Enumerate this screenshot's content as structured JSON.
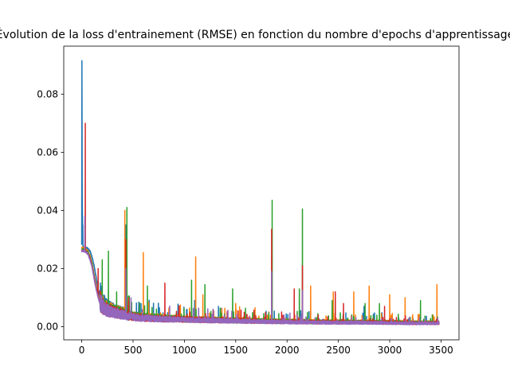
{
  "chart_data": {
    "type": "line",
    "title": "Évolution de la loss d'entrainement (RMSE) en fonction du nombre d'epochs d'apprentissage",
    "xlabel": "",
    "ylabel": "",
    "xlim": [
      -175,
      3675
    ],
    "ylim": [
      -0.0045,
      0.0965
    ],
    "x_ticks": [
      0,
      500,
      1000,
      1500,
      2000,
      2500,
      3000,
      3500
    ],
    "x_tick_labels": [
      "0",
      "500",
      "1000",
      "1500",
      "2000",
      "2500",
      "3000",
      "3500"
    ],
    "y_ticks": [
      0.0,
      0.02,
      0.04,
      0.06,
      0.08
    ],
    "y_tick_labels": [
      "0.00",
      "0.02",
      "0.04",
      "0.06",
      "0.08"
    ],
    "grid": false,
    "legend": "none",
    "series": [
      {
        "color": "#1f77b4",
        "x": [
          0,
          2,
          5,
          10,
          20,
          40,
          60,
          80,
          100,
          120,
          140,
          160,
          180,
          200,
          230,
          260,
          300,
          340,
          380,
          420,
          440,
          460,
          500,
          600,
          800,
          1000,
          1200,
          1500,
          1800,
          2000,
          2200,
          2500,
          2800,
          3000,
          3200,
          3480
        ],
        "y": [
          0.028,
          0.0915,
          0.045,
          0.028,
          0.027,
          0.027,
          0.0268,
          0.026,
          0.024,
          0.021,
          0.017,
          0.013,
          0.01,
          0.008,
          0.0065,
          0.0058,
          0.0052,
          0.0048,
          0.0045,
          0.0042,
          0.0039,
          0.0036,
          0.0033,
          0.003,
          0.0026,
          0.0023,
          0.0021,
          0.0019,
          0.0017,
          0.0016,
          0.0016,
          0.0015,
          0.0014,
          0.0014,
          0.0013,
          0.0012
        ],
        "spikes": [
          [
            2,
            0.0915
          ],
          [
            10,
            0.035
          ],
          [
            430,
            0.035
          ],
          [
            1100,
            0.009
          ],
          [
            1850,
            0.018
          ],
          [
            2150,
            0.012
          ],
          [
            2750,
            0.007
          ]
        ]
      },
      {
        "color": "#ff7f0e",
        "x": [
          0,
          20,
          40,
          60,
          80,
          100,
          120,
          140,
          160,
          180,
          200,
          230,
          260,
          300,
          340,
          380,
          420,
          440,
          460,
          500,
          600,
          800,
          1000,
          1200,
          1500,
          1800,
          2000,
          2200,
          2500,
          2800,
          3000,
          3200,
          3480
        ],
        "y": [
          0.027,
          0.027,
          0.0265,
          0.026,
          0.0245,
          0.022,
          0.018,
          0.0145,
          0.011,
          0.0085,
          0.007,
          0.006,
          0.0055,
          0.005,
          0.0047,
          0.0044,
          0.0041,
          0.0038,
          0.0035,
          0.0033,
          0.003,
          0.0027,
          0.0024,
          0.0022,
          0.002,
          0.0018,
          0.0017,
          0.0016,
          0.0015,
          0.0015,
          0.0014,
          0.0013,
          0.0013
        ],
        "spikes": [
          [
            420,
            0.04
          ],
          [
            600,
            0.0255
          ],
          [
            1110,
            0.024
          ],
          [
            1180,
            0.011
          ],
          [
            1500,
            0.008
          ],
          [
            2230,
            0.014
          ],
          [
            2450,
            0.012
          ],
          [
            2650,
            0.012
          ],
          [
            2800,
            0.014
          ],
          [
            3000,
            0.011
          ],
          [
            3150,
            0.01
          ],
          [
            3460,
            0.0145
          ]
        ]
      },
      {
        "color": "#2ca02c",
        "x": [
          0,
          20,
          40,
          60,
          80,
          100,
          120,
          140,
          160,
          180,
          200,
          230,
          260,
          300,
          340,
          380,
          420,
          440,
          460,
          500,
          600,
          800,
          1000,
          1200,
          1500,
          1800,
          2000,
          2200,
          2500,
          2800,
          3000,
          3200,
          3480
        ],
        "y": [
          0.0265,
          0.0265,
          0.026,
          0.0255,
          0.024,
          0.0215,
          0.0175,
          0.014,
          0.0105,
          0.008,
          0.0066,
          0.0057,
          0.0052,
          0.0048,
          0.0045,
          0.0042,
          0.0039,
          0.0036,
          0.0034,
          0.0032,
          0.0029,
          0.0026,
          0.0023,
          0.0021,
          0.0019,
          0.0017,
          0.0016,
          0.0015,
          0.0014,
          0.0014,
          0.0013,
          0.0012,
          0.0012
        ],
        "spikes": [
          [
            200,
            0.023
          ],
          [
            260,
            0.026
          ],
          [
            340,
            0.012
          ],
          [
            440,
            0.041
          ],
          [
            640,
            0.014
          ],
          [
            1070,
            0.016
          ],
          [
            1200,
            0.0145
          ],
          [
            1470,
            0.013
          ],
          [
            1855,
            0.0435
          ],
          [
            2150,
            0.0405
          ],
          [
            2120,
            0.013
          ],
          [
            2440,
            0.009
          ],
          [
            2760,
            0.008
          ],
          [
            2900,
            0.008
          ],
          [
            3300,
            0.009
          ]
        ]
      },
      {
        "color": "#d62728",
        "x": [
          0,
          20,
          40,
          60,
          80,
          100,
          120,
          140,
          160,
          180,
          200,
          230,
          260,
          300,
          340,
          380,
          420,
          440,
          460,
          500,
          600,
          800,
          1000,
          1200,
          1500,
          1800,
          2000,
          2200,
          2500,
          2800,
          3000,
          3200,
          3480
        ],
        "y": [
          0.026,
          0.026,
          0.0258,
          0.025,
          0.0235,
          0.021,
          0.017,
          0.0135,
          0.0102,
          0.0078,
          0.0064,
          0.0055,
          0.005,
          0.0046,
          0.0043,
          0.004,
          0.0037,
          0.0034,
          0.0032,
          0.003,
          0.0027,
          0.0024,
          0.0022,
          0.002,
          0.0018,
          0.0016,
          0.0015,
          0.0014,
          0.0013,
          0.0013,
          0.0012,
          0.0011,
          0.0011
        ],
        "spikes": [
          [
            35,
            0.07
          ],
          [
            160,
            0.02
          ],
          [
            430,
            0.03
          ],
          [
            810,
            0.015
          ],
          [
            1850,
            0.0335
          ],
          [
            2070,
            0.013
          ],
          [
            2150,
            0.021
          ],
          [
            2470,
            0.012
          ],
          [
            2550,
            0.008
          ],
          [
            2950,
            0.007
          ]
        ]
      },
      {
        "color": "#9467bd",
        "x": [
          0,
          20,
          40,
          60,
          80,
          100,
          120,
          140,
          160,
          180,
          200,
          230,
          260,
          300,
          340,
          380,
          420,
          440,
          460,
          500,
          600,
          800,
          1000,
          1200,
          1500,
          1800,
          2000,
          2200,
          2500,
          2800,
          3000,
          3200,
          3480
        ],
        "y": [
          0.026,
          0.026,
          0.0255,
          0.025,
          0.023,
          0.0205,
          0.0165,
          0.013,
          0.01,
          0.0076,
          0.0062,
          0.0053,
          0.0048,
          0.0044,
          0.0041,
          0.0038,
          0.0035,
          0.0033,
          0.0031,
          0.0029,
          0.0026,
          0.0023,
          0.0021,
          0.0019,
          0.0017,
          0.0015,
          0.0014,
          0.0013,
          0.0012,
          0.0012,
          0.0011,
          0.001,
          0.001
        ],
        "spikes": [
          [
            30,
            0.038
          ],
          [
            430,
            0.02
          ],
          [
            1850,
            0.019
          ],
          [
            2150,
            0.0125
          ]
        ]
      }
    ]
  }
}
